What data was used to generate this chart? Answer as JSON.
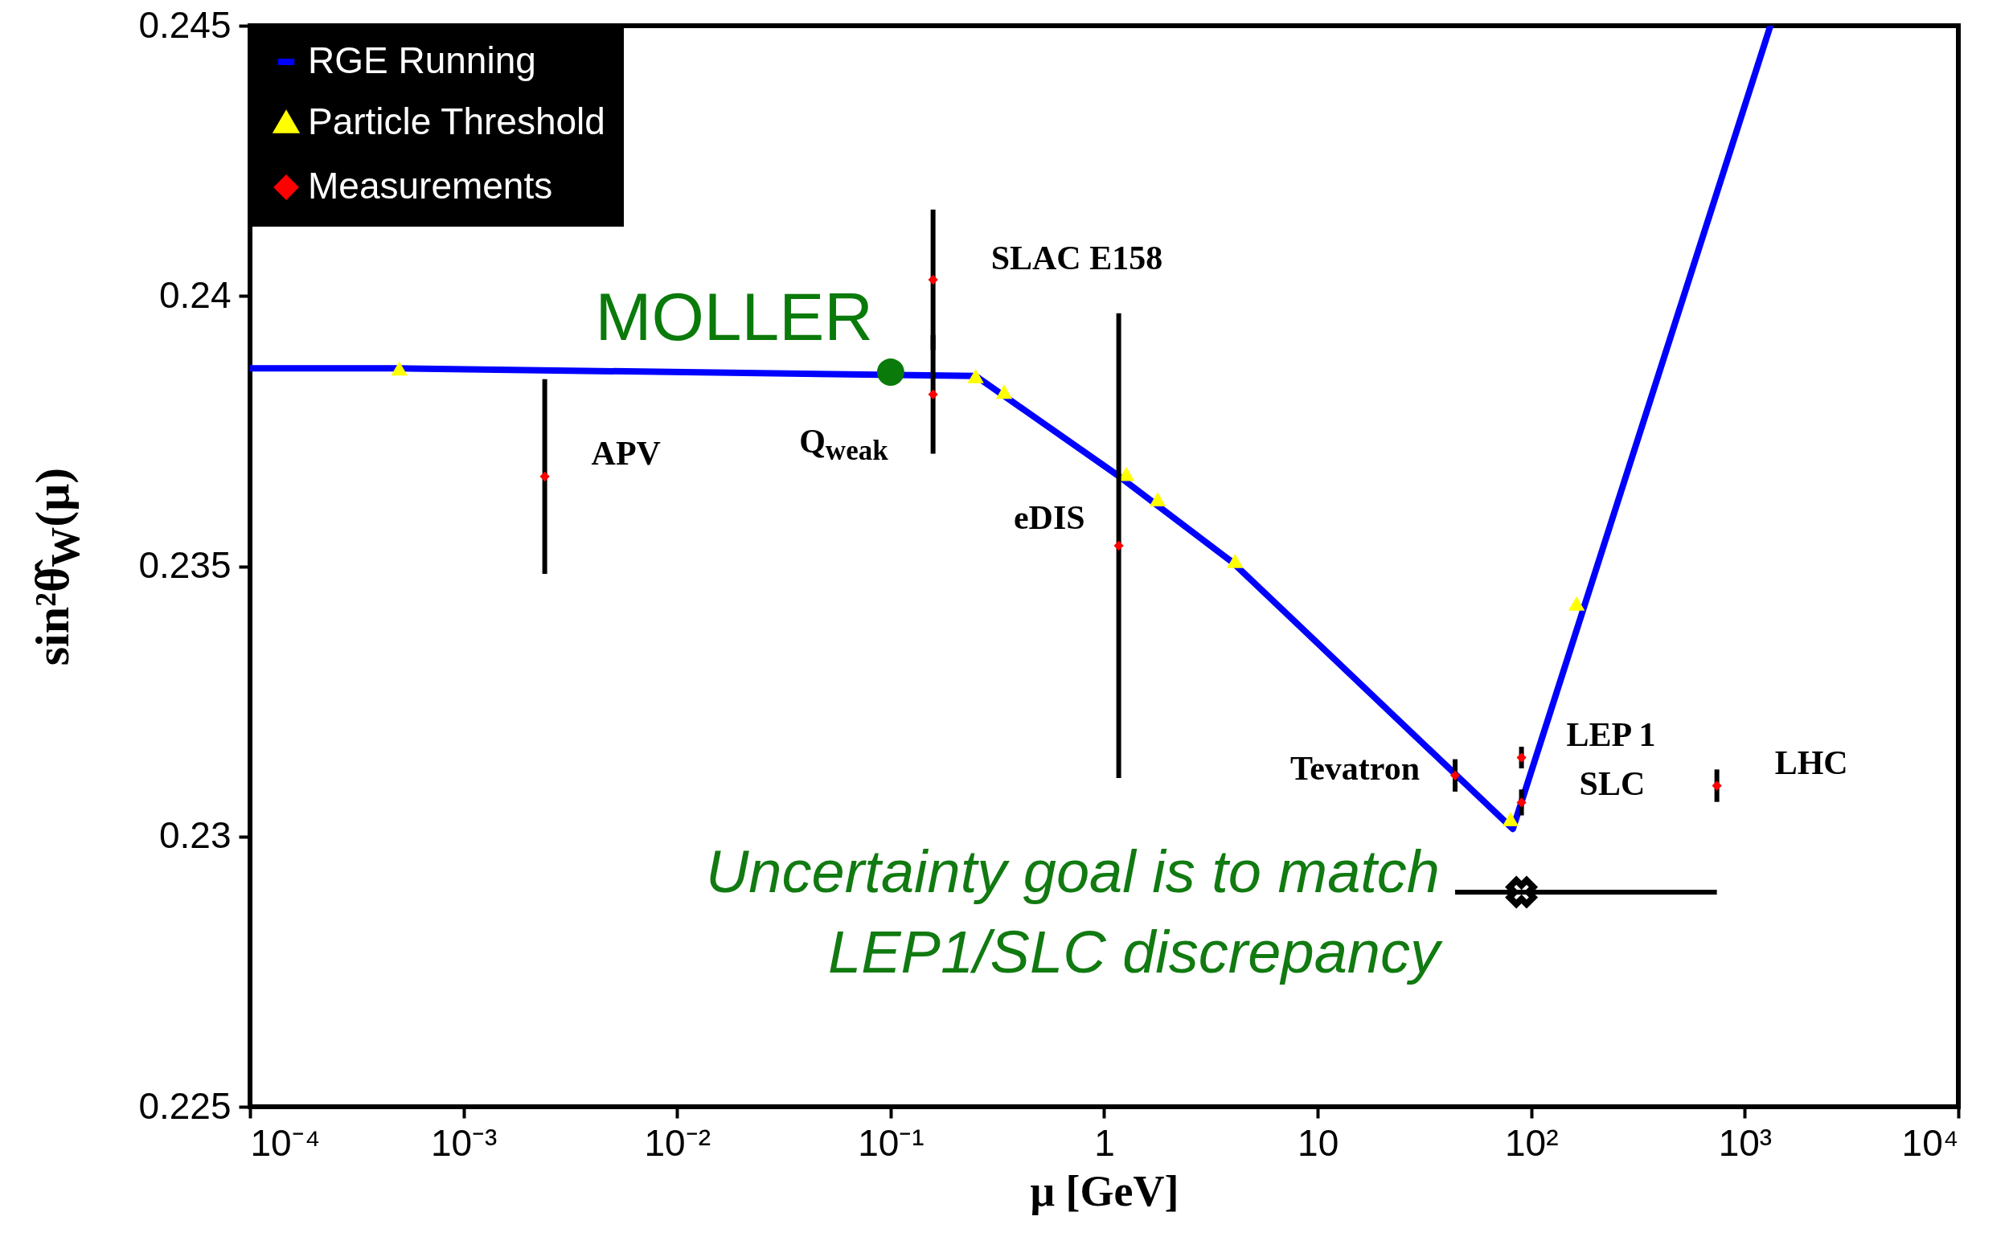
{
  "chart_data": {
    "type": "scatter",
    "xlabel": "μ [GeV]",
    "ylabel": "sin²θ̂$_{W}$(μ)",
    "log": "x",
    "xlim": [
      0.0001,
      10000
    ],
    "ylim": [
      0.225,
      0.245
    ],
    "xticks": [
      {
        "value": 0.0001,
        "label": "10⁻⁴"
      },
      {
        "value": 0.001,
        "label": "10⁻³"
      },
      {
        "value": 0.01,
        "label": "10⁻²"
      },
      {
        "value": 0.1,
        "label": "10⁻¹"
      },
      1,
      10,
      {
        "value": 100,
        "label": "10²"
      },
      {
        "value": 1000,
        "label": "10³"
      },
      {
        "value": 10000,
        "label": "10⁴"
      }
    ],
    "yticks": [
      0.225,
      0.23,
      0.235,
      0.24,
      0.245
    ],
    "legend": "top left",
    "series": [
      {
        "name": "RGE Running",
        "type": "line",
        "color": "#0000ff",
        "x": [
          0.0001,
          0.0005,
          0.25,
          1.15,
          4.0,
          82,
          1318
        ],
        "values": [
          0.23866,
          0.23866,
          0.23852,
          0.23669,
          0.23507,
          0.23014,
          0.245
        ]
      },
      {
        "name": "Particle Threshold",
        "color": "#ffff00",
        "marker": "triangle",
        "x": [
          0.0005,
          0.25,
          0.34,
          1.27,
          1.78,
          4.1,
          80,
          163
        ],
        "values": [
          0.23866,
          0.23852,
          0.23823,
          0.23671,
          0.23624,
          0.2351,
          0.23032,
          0.23431
        ]
      },
      {
        "name": "Measurements",
        "color": "#ff0000",
        "marker": "diamond",
        "x": [
          0.0024,
          0.158,
          0.158,
          1.17,
          44,
          90,
          90,
          740
        ],
        "values": [
          0.23666,
          0.23818,
          0.2403,
          0.23538,
          0.23113,
          0.23146,
          0.23063,
          0.23094
        ],
        "errors": [
          0.0018,
          0.0011,
          0.0013,
          0.0043,
          0.0003,
          0.0002,
          0.00024,
          0.0003
        ]
      },
      {
        "name": "MOLLER",
        "color": "#0a7a0a",
        "marker": "circle",
        "x": [
          0.1
        ],
        "values": [
          0.23859
        ]
      },
      {
        "color": "#000000",
        "marker": "cross",
        "x": [
          90
        ],
        "values": [
          0.22897
        ],
        "xerrors": [
          [
            44,
            740
          ]
        ]
      }
    ],
    "annotations": [
      {
        "text": "APV",
        "x": 0.0024,
        "y": 0.23666
      },
      {
        "text": "Q$_{weak}$",
        "x": 0.158,
        "y": 0.23818
      },
      {
        "text": "SLAC E158",
        "x": 0.158,
        "y": 0.2403
      },
      {
        "text": "eDIS",
        "x": 1.17,
        "y": 0.23538
      },
      {
        "text": "Tevatron",
        "x": 44,
        "y": 0.23113
      },
      {
        "text": "LEP 1",
        "x": 90,
        "y": 0.23146
      },
      {
        "text": "SLC",
        "x": 90,
        "y": 0.23063
      },
      {
        "text": "LHC",
        "x": 740,
        "y": 0.23094
      },
      "Uncertainty goal is to match\nLEP1/SLC discrepancy"
    ]
  }
}
